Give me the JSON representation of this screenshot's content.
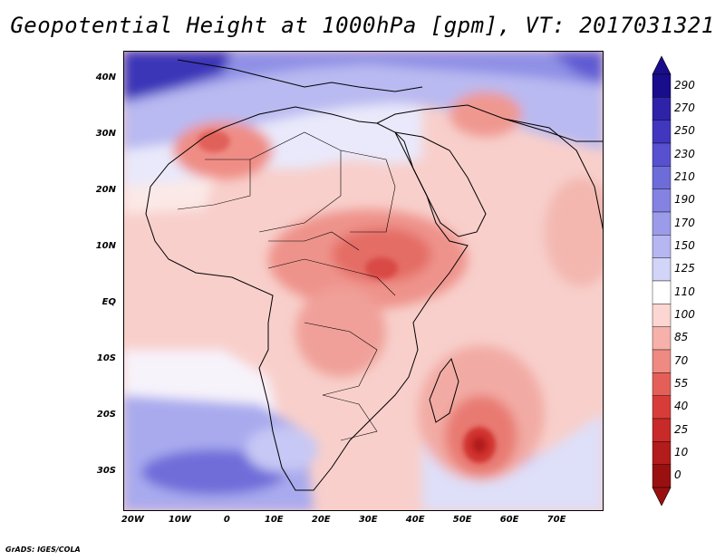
{
  "title": "Geopotential Height at 1000hPa [gpm], VT: 2017031321",
  "credit": "GrADS: IGES/COLA",
  "map": {
    "lon_range": [
      -22,
      80
    ],
    "lat_range": [
      -37,
      45
    ],
    "lat_labels": [
      "40N",
      "30N",
      "20N",
      "10N",
      "EQ",
      "10S",
      "20S",
      "30S"
    ],
    "lat_values": [
      40,
      30,
      20,
      10,
      0,
      -10,
      -20,
      -30
    ],
    "lon_labels": [
      "20W",
      "10W",
      "0",
      "10E",
      "20E",
      "30E",
      "40E",
      "50E",
      "60E",
      "70E"
    ],
    "lon_values": [
      -20,
      -10,
      0,
      10,
      20,
      30,
      40,
      50,
      60,
      70
    ]
  },
  "colorbar": {
    "levels": [
      "290",
      "270",
      "250",
      "230",
      "210",
      "190",
      "170",
      "150",
      "125",
      "110",
      "100",
      "85",
      "70",
      "55",
      "40",
      "25",
      "10",
      "0"
    ],
    "colors": [
      "#1a0d8c",
      "#2e23a8",
      "#4137bf",
      "#5750cf",
      "#6e6cd9",
      "#8483e2",
      "#9c9bea",
      "#b5b6f2",
      "#d2d4f8",
      "#ffffff",
      "#fcd6d2",
      "#f6b1aa",
      "#ee8a82",
      "#e45f58",
      "#d83c39",
      "#c72a28",
      "#b21c1c",
      "#9a1010"
    ]
  }
}
